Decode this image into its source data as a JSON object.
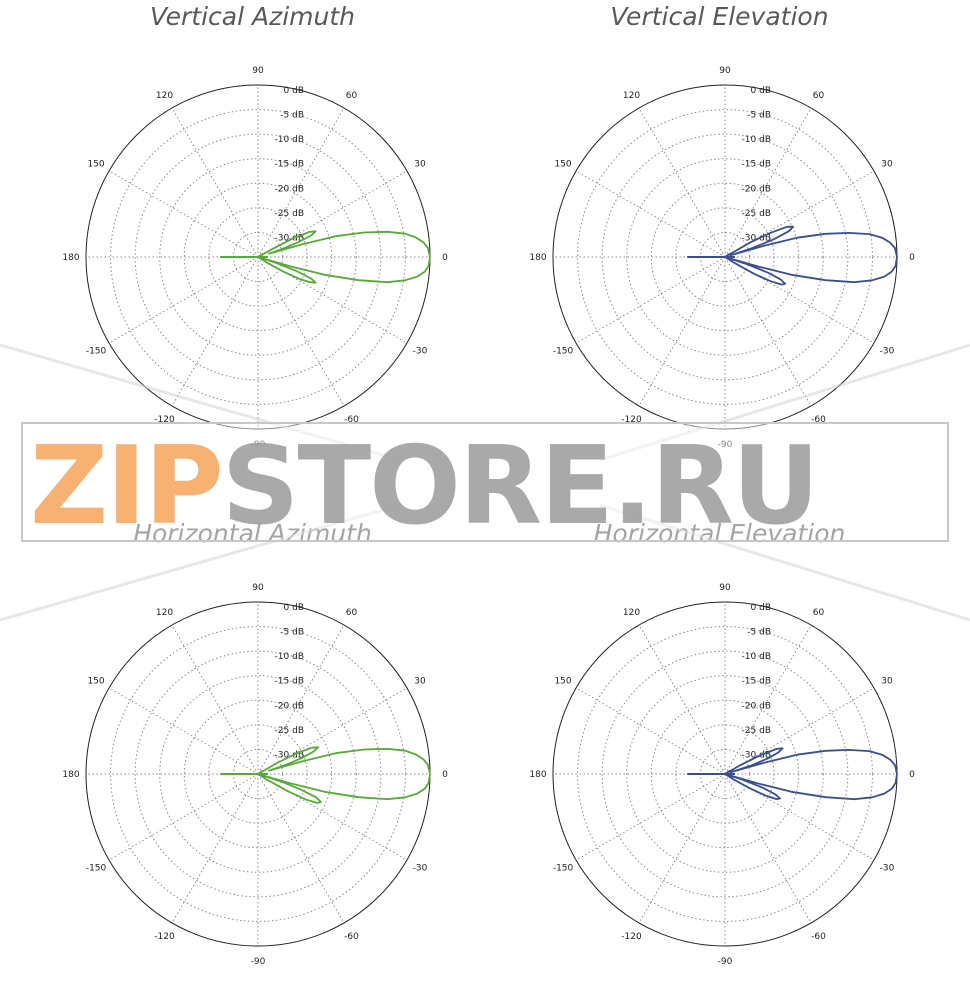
{
  "colors": {
    "green": "#5aa83c",
    "blue": "#3a4f8c",
    "grid": "#8a8a8a",
    "title": "#58595b",
    "wm_orange": "#f5a35a",
    "wm_gray": "#9a9a9a"
  },
  "watermark": {
    "part1": "ZIP",
    "part2": "STORE.RU"
  },
  "chart_data": [
    {
      "type": "polar",
      "title": "Vertical Azimuth",
      "angle_labels": [
        "0",
        "30",
        "60",
        "90",
        "120",
        "150",
        "180",
        "-150",
        "-120",
        "-90",
        "-60",
        "-30"
      ],
      "radial_labels": [
        "0 dB",
        "-5 dB",
        "-10 dB",
        "-15 dB",
        "-20 dB",
        "-25 dB",
        "-30 dB"
      ],
      "rlim_db": [
        -30,
        0
      ],
      "grid": true,
      "color": "green",
      "series": [
        {
          "points_deg_db": [
            [
              0,
              0
            ],
            [
              3,
              -0.3
            ],
            [
              5,
              -1
            ],
            [
              7,
              -2.2
            ],
            [
              9,
              -4
            ],
            [
              11,
              -7
            ],
            [
              13,
              -11
            ],
            [
              15,
              -16
            ],
            [
              16,
              -22
            ],
            [
              17,
              -28
            ],
            [
              18,
              -26
            ],
            [
              20,
              -23
            ],
            [
              22,
              -20
            ],
            [
              24,
              -19
            ],
            [
              26,
              -20
            ],
            [
              28,
              -23
            ],
            [
              29,
              -27
            ],
            [
              30,
              -30
            ],
            [
              33,
              -29
            ],
            [
              36,
              -31
            ],
            [
              40,
              -33
            ],
            [
              60,
              -33
            ],
            [
              90,
              -33
            ],
            [
              120,
              -34
            ],
            [
              150,
              -35
            ],
            [
              170,
              -33
            ],
            [
              178,
              -30
            ],
            [
              180,
              -29.5
            ],
            [
              182,
              -30
            ],
            [
              190,
              -33
            ],
            [
              210,
              -35
            ],
            [
              240,
              -34
            ],
            [
              270,
              -33
            ],
            [
              300,
              -33
            ],
            [
              320,
              -33
            ],
            [
              325,
              -31
            ],
            [
              328,
              -28
            ],
            [
              330,
              -25
            ],
            [
              332,
              -22
            ],
            [
              334,
              -20
            ],
            [
              336,
              -19
            ],
            [
              338,
              -20
            ],
            [
              340,
              -23
            ],
            [
              342,
              -27
            ],
            [
              343,
              -30
            ],
            [
              344,
              -24
            ],
            [
              345,
              -18
            ],
            [
              347,
              -12
            ],
            [
              349,
              -7
            ],
            [
              351,
              -4
            ],
            [
              353,
              -2
            ],
            [
              355,
              -0.8
            ],
            [
              357,
              -0.2
            ],
            [
              360,
              0
            ]
          ]
        }
      ]
    },
    {
      "type": "polar",
      "title": "Vertical Elevation",
      "angle_labels": [
        "0",
        "30",
        "60",
        "90",
        "120",
        "150",
        "180",
        "-150",
        "-120",
        "-90",
        "-60",
        "-30"
      ],
      "radial_labels": [
        "0 dB",
        "-5 dB",
        "-10 dB",
        "-15 dB",
        "-20 dB",
        "-25 dB",
        "-30 dB"
      ],
      "rlim_db": [
        -30,
        0
      ],
      "grid": true,
      "color": "blue",
      "series": [
        {
          "points_deg_db": [
            [
              0,
              0
            ],
            [
              3,
              -0.3
            ],
            [
              5,
              -1.1
            ],
            [
              7,
              -2.4
            ],
            [
              9,
              -4.5
            ],
            [
              11,
              -8
            ],
            [
              13,
              -12
            ],
            [
              15,
              -17
            ],
            [
              16,
              -23
            ],
            [
              17,
              -29
            ],
            [
              18,
              -25
            ],
            [
              20,
              -21
            ],
            [
              22,
              -18
            ],
            [
              24,
              -17
            ],
            [
              26,
              -18
            ],
            [
              28,
              -21
            ],
            [
              30,
              -25
            ],
            [
              31,
              -30
            ],
            [
              34,
              -29
            ],
            [
              37,
              -31
            ],
            [
              40,
              -33
            ],
            [
              60,
              -33
            ],
            [
              90,
              -33
            ],
            [
              120,
              -34
            ],
            [
              150,
              -35
            ],
            [
              170,
              -33
            ],
            [
              178,
              -30
            ],
            [
              180,
              -29.5
            ],
            [
              182,
              -30
            ],
            [
              190,
              -33
            ],
            [
              210,
              -35
            ],
            [
              240,
              -34
            ],
            [
              270,
              -33
            ],
            [
              300,
              -33
            ],
            [
              320,
              -33
            ],
            [
              325,
              -31
            ],
            [
              328,
              -28
            ],
            [
              330,
              -24
            ],
            [
              332,
              -21
            ],
            [
              334,
              -19
            ],
            [
              336,
              -18.5
            ],
            [
              338,
              -19.5
            ],
            [
              340,
              -22
            ],
            [
              342,
              -26
            ],
            [
              343,
              -30
            ],
            [
              344,
              -24
            ],
            [
              345,
              -18
            ],
            [
              347,
              -12
            ],
            [
              349,
              -7
            ],
            [
              351,
              -4
            ],
            [
              353,
              -2
            ],
            [
              355,
              -0.8
            ],
            [
              357,
              -0.2
            ],
            [
              360,
              0
            ]
          ]
        }
      ]
    },
    {
      "type": "polar",
      "title": "Horizontal Azimuth",
      "angle_labels": [
        "0",
        "30",
        "60",
        "90",
        "120",
        "150",
        "180",
        "-150",
        "-120",
        "-90",
        "-60",
        "-30"
      ],
      "radial_labels": [
        "0 dB",
        "-5 dB",
        "-10 dB",
        "-15 dB",
        "-20 dB",
        "-25 dB",
        "-30 dB"
      ],
      "rlim_db": [
        -30,
        0
      ],
      "grid": true,
      "color": "green",
      "series": [
        {
          "points_deg_db": [
            [
              0,
              0
            ],
            [
              3,
              -0.3
            ],
            [
              5,
              -1
            ],
            [
              7,
              -2.2
            ],
            [
              9,
              -4
            ],
            [
              11,
              -7
            ],
            [
              13,
              -11
            ],
            [
              15,
              -16
            ],
            [
              16,
              -22
            ],
            [
              17,
              -28
            ],
            [
              18,
              -25
            ],
            [
              20,
              -22
            ],
            [
              22,
              -19.5
            ],
            [
              24,
              -18.5
            ],
            [
              26,
              -19.5
            ],
            [
              28,
              -22
            ],
            [
              30,
              -26
            ],
            [
              31,
              -30
            ],
            [
              34,
              -29
            ],
            [
              37,
              -31
            ],
            [
              40,
              -33
            ],
            [
              60,
              -33
            ],
            [
              90,
              -33
            ],
            [
              120,
              -34
            ],
            [
              150,
              -35
            ],
            [
              170,
              -33
            ],
            [
              178,
              -30
            ],
            [
              180,
              -29.5
            ],
            [
              182,
              -30
            ],
            [
              190,
              -33
            ],
            [
              210,
              -35
            ],
            [
              240,
              -34
            ],
            [
              270,
              -33
            ],
            [
              300,
              -33
            ],
            [
              320,
              -33
            ],
            [
              325,
              -31
            ],
            [
              328,
              -28
            ],
            [
              330,
              -24
            ],
            [
              332,
              -20.5
            ],
            [
              334,
              -18.5
            ],
            [
              336,
              -18
            ],
            [
              338,
              -19
            ],
            [
              340,
              -22
            ],
            [
              342,
              -26
            ],
            [
              343,
              -30
            ],
            [
              344,
              -24
            ],
            [
              345,
              -18
            ],
            [
              347,
              -12
            ],
            [
              349,
              -7
            ],
            [
              351,
              -4
            ],
            [
              353,
              -2
            ],
            [
              355,
              -0.8
            ],
            [
              357,
              -0.2
            ],
            [
              360,
              0
            ]
          ]
        }
      ]
    },
    {
      "type": "polar",
      "title": "Horizontal Elevation",
      "angle_labels": [
        "0",
        "30",
        "60",
        "90",
        "120",
        "150",
        "180",
        "-150",
        "-120",
        "-90",
        "-60",
        "-30"
      ],
      "radial_labels": [
        "0 dB",
        "-5 dB",
        "-10 dB",
        "-15 dB",
        "-20 dB",
        "-25 dB",
        "-30 dB"
      ],
      "rlim_db": [
        -30,
        0
      ],
      "grid": true,
      "color": "blue",
      "series": [
        {
          "points_deg_db": [
            [
              0,
              0
            ],
            [
              3,
              -0.3
            ],
            [
              5,
              -1.1
            ],
            [
              7,
              -2.4
            ],
            [
              9,
              -4.5
            ],
            [
              11,
              -8
            ],
            [
              13,
              -12
            ],
            [
              15,
              -17
            ],
            [
              16,
              -23
            ],
            [
              17,
              -29
            ],
            [
              18,
              -25
            ],
            [
              20,
              -22
            ],
            [
              22,
              -20
            ],
            [
              24,
              -19
            ],
            [
              26,
              -20
            ],
            [
              28,
              -23
            ],
            [
              30,
              -27
            ],
            [
              31,
              -30
            ],
            [
              34,
              -29
            ],
            [
              37,
              -31
            ],
            [
              40,
              -33
            ],
            [
              60,
              -33
            ],
            [
              90,
              -33
            ],
            [
              120,
              -34
            ],
            [
              150,
              -35
            ],
            [
              170,
              -33
            ],
            [
              178,
              -30
            ],
            [
              180,
              -29.5
            ],
            [
              182,
              -30
            ],
            [
              190,
              -33
            ],
            [
              210,
              -35
            ],
            [
              240,
              -34
            ],
            [
              270,
              -33
            ],
            [
              300,
              -33
            ],
            [
              320,
              -33
            ],
            [
              325,
              -31
            ],
            [
              328,
              -28
            ],
            [
              330,
              -25
            ],
            [
              332,
              -22
            ],
            [
              334,
              -20
            ],
            [
              336,
              -19.5
            ],
            [
              338,
              -20.5
            ],
            [
              340,
              -23
            ],
            [
              342,
              -27
            ],
            [
              343,
              -30
            ],
            [
              344,
              -24
            ],
            [
              345,
              -18
            ],
            [
              347,
              -12
            ],
            [
              349,
              -7
            ],
            [
              351,
              -4
            ],
            [
              353,
              -2
            ],
            [
              355,
              -0.8
            ],
            [
              357,
              -0.2
            ],
            [
              360,
              0
            ]
          ]
        }
      ]
    }
  ]
}
